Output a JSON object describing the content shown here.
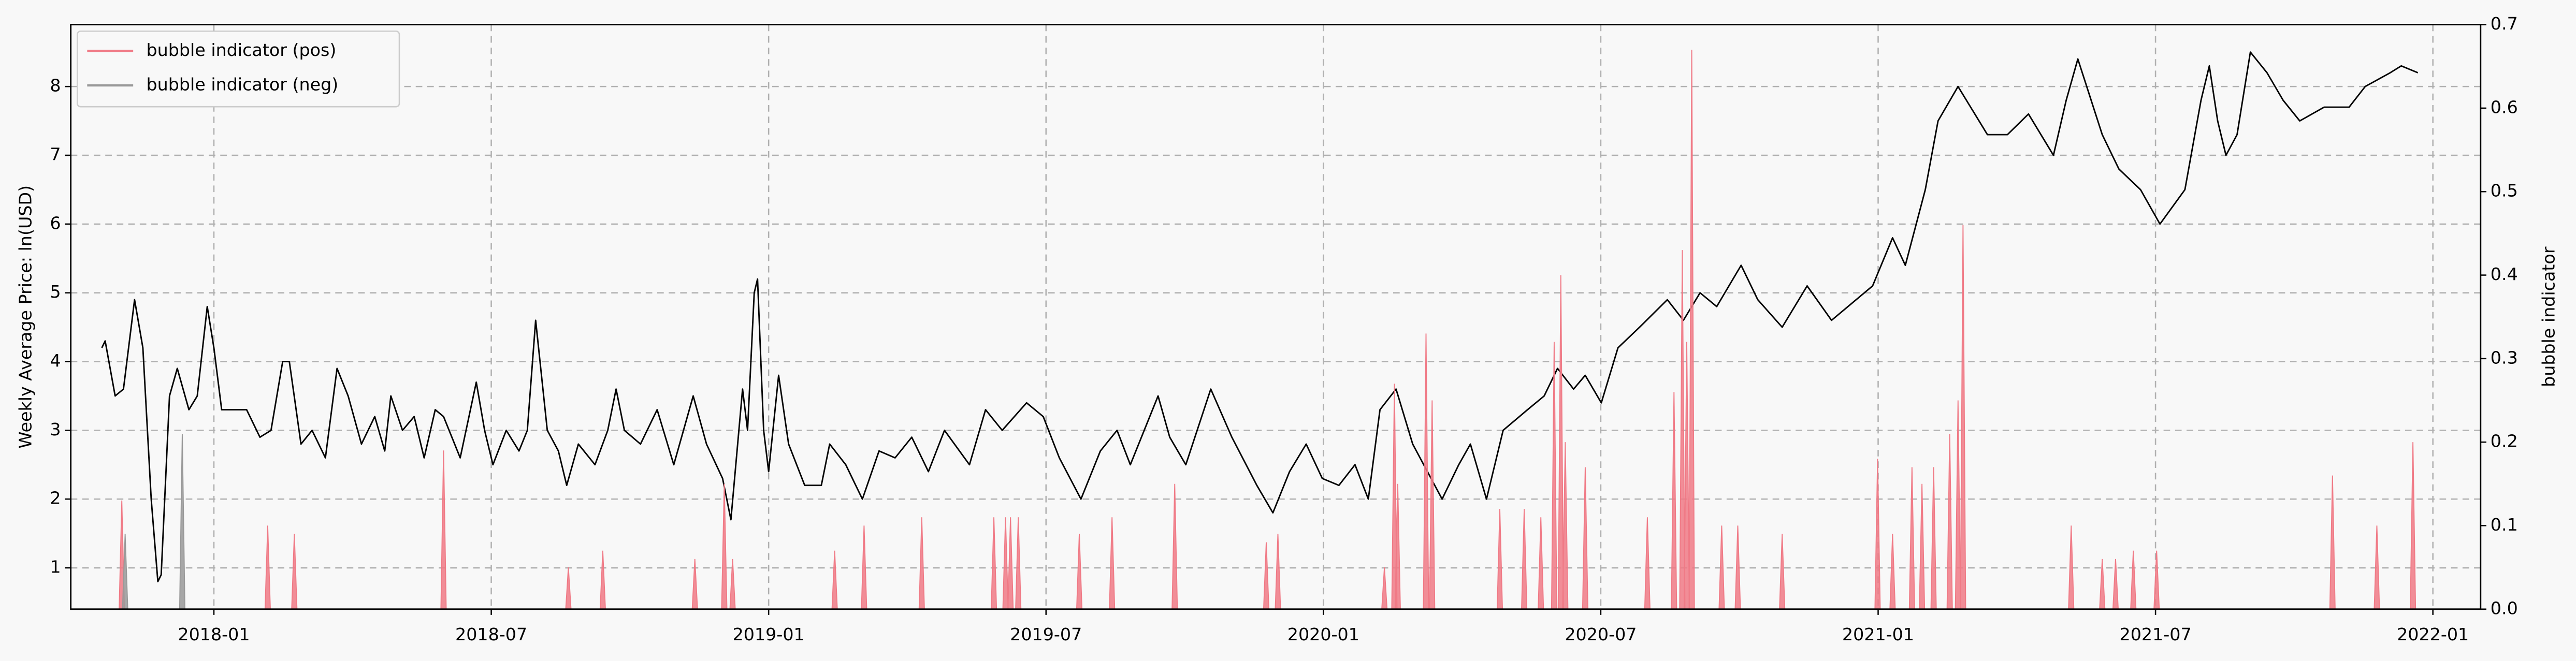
{
  "chart_data": {
    "type": "line",
    "ylabel": "Weekly Average Price: ln(USD)",
    "y2label": "bubble indicator",
    "xlim": [
      2017.742,
      2022.086
    ],
    "xticks": [
      {
        "value": 2018,
        "label": "2018-01"
      },
      {
        "value": 2018.5,
        "label": "2018-07"
      },
      {
        "value": 2019,
        "label": "2019-01"
      },
      {
        "value": 2019.5,
        "label": "2019-07"
      },
      {
        "value": 2020,
        "label": "2020-01"
      },
      {
        "value": 2020.5,
        "label": "2020-07"
      },
      {
        "value": 2021,
        "label": "2021-01"
      },
      {
        "value": 2021.5,
        "label": "2021-07"
      },
      {
        "value": 2022,
        "label": "2022-01"
      }
    ],
    "ylim": [
      0.4,
      8.9
    ],
    "yticks": [
      1,
      2,
      3,
      4,
      5,
      6,
      7,
      8
    ],
    "y2lim": [
      0,
      0.7
    ],
    "y2ticks": [
      {
        "value": 0,
        "label": "0.0"
      },
      0.1,
      0.2,
      0.3,
      0.4,
      0.5,
      0.6,
      0.7
    ],
    "grid": true,
    "legend": "upper left",
    "series": [
      {
        "type": "line",
        "color": "#000000",
        "x": [
          2017.798,
          2017.804,
          2017.822,
          2017.837,
          2017.857,
          2017.872,
          2017.887,
          2017.899,
          2017.905,
          2017.92,
          2017.934,
          2017.955,
          2017.97,
          2017.988,
          2018.0,
          2018.014,
          2018.044,
          2018.059,
          2018.083,
          2018.103,
          2018.124,
          2018.136,
          2018.157,
          2018.177,
          2018.201,
          2018.222,
          2018.242,
          2018.266,
          2018.29,
          2018.308,
          2018.319,
          2018.34,
          2018.361,
          2018.379,
          2018.399,
          2018.414,
          2018.444,
          2018.473,
          2018.488,
          2018.503,
          2018.527,
          2018.55,
          2018.565,
          2018.58,
          2018.601,
          2018.621,
          2018.636,
          2018.657,
          2018.687,
          2018.71,
          2018.725,
          2018.74,
          2018.769,
          2018.799,
          2018.829,
          2018.864,
          2018.888,
          2018.917,
          2018.932,
          2018.953,
          2018.962,
          2018.974,
          2018.98,
          2018.991,
          2019.0,
          2019.018,
          2019.036,
          2019.065,
          2019.095,
          2019.11,
          2019.139,
          2019.169,
          2019.199,
          2019.228,
          2019.258,
          2019.288,
          2019.317,
          2019.362,
          2019.391,
          2019.421,
          2019.465,
          2019.495,
          2019.524,
          2019.563,
          2019.598,
          2019.628,
          2019.652,
          2019.702,
          2019.723,
          2019.752,
          2019.797,
          2019.835,
          2019.88,
          2019.909,
          2019.939,
          2019.969,
          2019.998,
          2020.028,
          2020.057,
          2020.081,
          2020.102,
          2020.131,
          2020.161,
          2020.214,
          2020.244,
          2020.265,
          2020.294,
          2020.324,
          2020.368,
          2020.398,
          2020.422,
          2020.451,
          2020.472,
          2020.501,
          2020.531,
          2020.57,
          2020.62,
          2020.649,
          2020.679,
          2020.709,
          2020.753,
          2020.783,
          2020.827,
          2020.872,
          2020.916,
          2020.99,
          2021.026,
          2021.049,
          2021.085,
          2021.108,
          2021.144,
          2021.197,
          2021.233,
          2021.271,
          2021.316,
          2021.339,
          2021.36,
          2021.404,
          2021.434,
          2021.473,
          2021.508,
          2021.553,
          2021.582,
          2021.597,
          2021.612,
          2021.627,
          2021.647,
          2021.671,
          2021.701,
          2021.73,
          2021.76,
          2021.804,
          2021.849,
          2021.878,
          2021.923,
          2021.943,
          2021.973
        ],
        "values": [
          4.2,
          4.3,
          3.5,
          3.6,
          4.9,
          4.2,
          2.0,
          0.8,
          0.9,
          3.5,
          3.9,
          3.3,
          3.5,
          4.8,
          4.2,
          3.3,
          3.3,
          3.3,
          2.9,
          3.0,
          4.0,
          4.0,
          2.8,
          3.0,
          2.6,
          3.9,
          3.5,
          2.8,
          3.2,
          2.7,
          3.5,
          3.0,
          3.2,
          2.6,
          3.3,
          3.2,
          2.6,
          3.7,
          3.0,
          2.5,
          3.0,
          2.7,
          3.0,
          4.6,
          3.0,
          2.7,
          2.2,
          2.8,
          2.5,
          3.0,
          3.6,
          3.0,
          2.8,
          3.3,
          2.5,
          3.5,
          2.8,
          2.3,
          1.7,
          3.6,
          3.0,
          5.0,
          5.2,
          3.0,
          2.4,
          3.8,
          2.8,
          2.2,
          2.2,
          2.8,
          2.5,
          2.0,
          2.7,
          2.6,
          2.9,
          2.4,
          3.0,
          2.5,
          3.3,
          3.0,
          3.4,
          3.2,
          2.6,
          2.0,
          2.7,
          3.0,
          2.5,
          3.5,
          2.9,
          2.5,
          3.6,
          2.9,
          2.2,
          1.8,
          2.4,
          2.8,
          2.3,
          2.2,
          2.5,
          2.0,
          3.3,
          3.6,
          2.8,
          2.0,
          2.5,
          2.8,
          2.0,
          3.0,
          3.3,
          3.5,
          3.9,
          3.6,
          3.8,
          3.4,
          4.2,
          4.5,
          4.9,
          4.6,
          5.0,
          4.8,
          5.4,
          4.9,
          4.5,
          5.1,
          4.6,
          5.1,
          5.8,
          5.4,
          6.5,
          7.5,
          8.0,
          7.3,
          7.3,
          7.6,
          7.0,
          7.8,
          8.4,
          7.3,
          6.8,
          6.5,
          6.0,
          6.5,
          7.8,
          8.3,
          7.5,
          7.0,
          7.3,
          8.5,
          8.2,
          7.8,
          7.5,
          7.7,
          7.7,
          8.0,
          8.2,
          8.3,
          8.2
        ]
      },
      {
        "type": "stem",
        "name": "bubble indicator (pos)",
        "color": "#f07a86",
        "axis": "y2",
        "x": [
          2017.834,
          2018.097,
          2018.145,
          2018.414,
          2018.639,
          2018.701,
          2018.867,
          2018.92,
          2018.935,
          2019.119,
          2019.172,
          2019.276,
          2019.406,
          2019.427,
          2019.436,
          2019.45,
          2019.56,
          2019.619,
          2019.732,
          2019.897,
          2019.918,
          2020.11,
          2020.128,
          2020.134,
          2020.185,
          2020.196,
          2020.318,
          2020.362,
          2020.392,
          2020.416,
          2020.428,
          2020.436,
          2020.472,
          2020.584,
          2020.632,
          2020.647,
          2020.655,
          2020.664,
          2020.718,
          2020.747,
          2020.827,
          2020.999,
          2021.026,
          2021.061,
          2021.079,
          2021.1,
          2021.129,
          2021.144,
          2021.153,
          2021.348,
          2021.404,
          2021.428,
          2021.46,
          2021.502,
          2021.819,
          2021.899,
          2021.964
        ],
        "values": [
          0.13,
          0.1,
          0.09,
          0.19,
          0.05,
          0.07,
          0.06,
          0.15,
          0.06,
          0.07,
          0.1,
          0.11,
          0.11,
          0.11,
          0.11,
          0.11,
          0.09,
          0.11,
          0.15,
          0.08,
          0.09,
          0.05,
          0.27,
          0.15,
          0.33,
          0.25,
          0.12,
          0.12,
          0.11,
          0.32,
          0.4,
          0.2,
          0.17,
          0.11,
          0.26,
          0.43,
          0.32,
          0.67,
          0.1,
          0.1,
          0.09,
          0.18,
          0.09,
          0.17,
          0.15,
          0.17,
          0.21,
          0.25,
          0.46,
          0.1,
          0.06,
          0.06,
          0.07,
          0.07,
          0.16,
          0.1,
          0.2
        ]
      },
      {
        "type": "stem",
        "name": "bubble indicator (neg)",
        "color": "#999999",
        "axis": "y2",
        "x": [
          2017.84,
          2017.943
        ],
        "values": [
          0.09,
          0.21
        ]
      }
    ]
  }
}
